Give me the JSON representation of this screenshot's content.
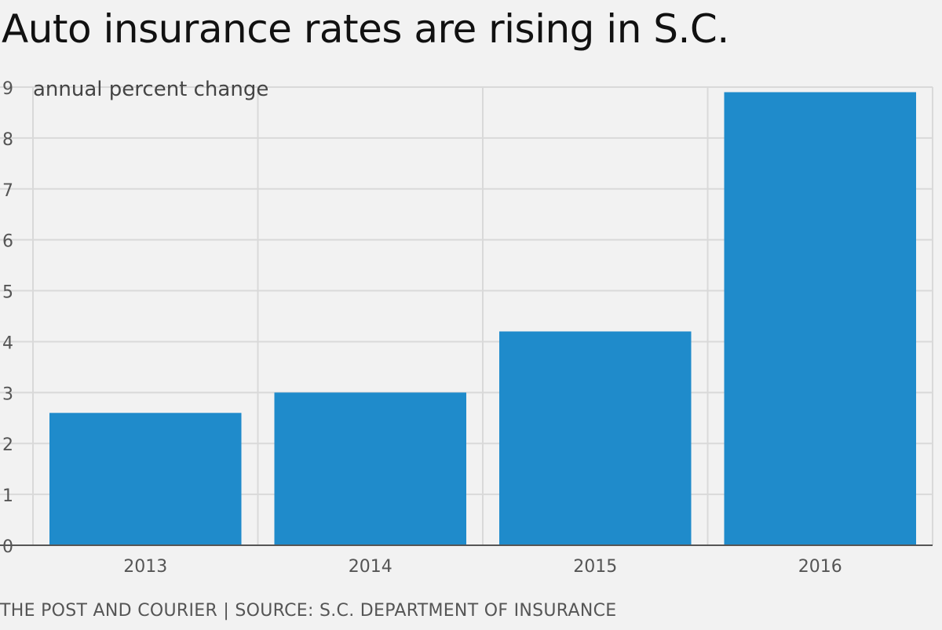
{
  "title": "Auto insurance rates are rising in S.C.",
  "source": "THE POST AND COURIER | SOURCE: S.C. DEPARTMENT OF INSURANCE",
  "colors": {
    "bar": "#1f8bcb",
    "grid": "#d9d9d9",
    "axis": "#555555",
    "tick_text": "#555555"
  },
  "chart_data": {
    "type": "bar",
    "title": "Auto insurance rates are rising in S.C.",
    "ylabel": "annual percent change",
    "xlabel": "",
    "categories": [
      "2013",
      "2014",
      "2015",
      "2016"
    ],
    "values": [
      2.6,
      3.0,
      4.2,
      8.9
    ],
    "ylim": [
      0,
      9
    ],
    "yticks": [
      0,
      1,
      2,
      3,
      4,
      5,
      6,
      7,
      8,
      9
    ],
    "grid": true
  }
}
